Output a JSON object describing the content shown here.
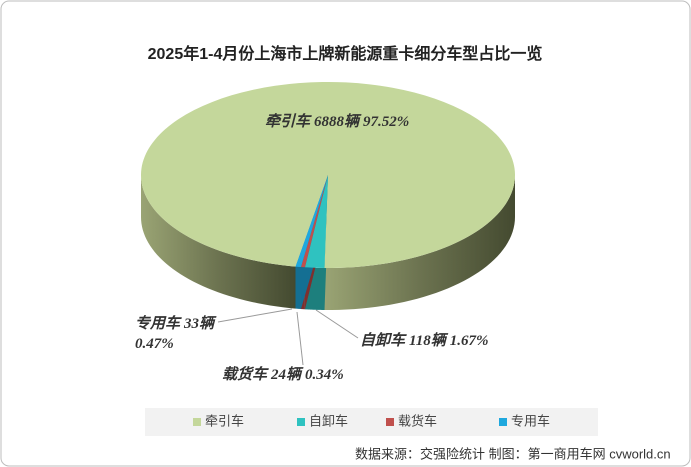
{
  "chart_data": {
    "type": "pie",
    "title": "2025年1-4月份上海市上牌新能源重卡细分车型占比一览",
    "categories": [
      "牵引车",
      "自卸车",
      "载货车",
      "专用车"
    ],
    "values": [
      97.52,
      1.67,
      0.34,
      0.47
    ],
    "value_labels": [
      "97.52%",
      "1.67%",
      "0.34%",
      "0.47%"
    ],
    "count_labels": [
      "6888辆",
      "118辆",
      "24辆",
      "33辆"
    ],
    "colors": [
      "#c4d79b",
      "#2fc2c0",
      "#c0504d",
      "#1fa8de"
    ],
    "legend": "bottom",
    "source": "数据来源：交强险统计  制图：第一商用车网 cvworld.cn"
  }
}
